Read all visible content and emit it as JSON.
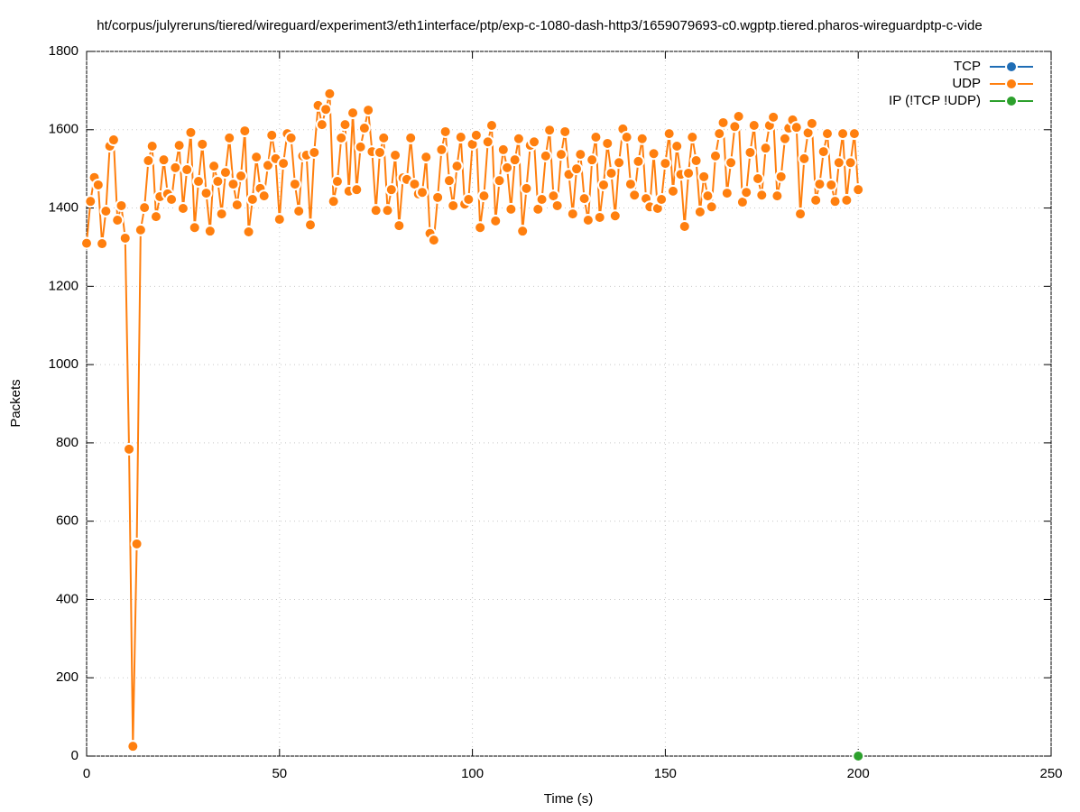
{
  "chart_data": {
    "type": "line",
    "title": "ht/corpus/julyreruns/tiered/wireguard/experiment3/eth1interface/ptp/exp-c-1080-dash-http3/1659079693-c0.wgptp.tiered.pharos-wireguardptp-c-vide",
    "x_label": "Time (s)",
    "y_label": "Packets",
    "xlim": [
      0,
      250
    ],
    "xticks": [
      0,
      50,
      100,
      150,
      200,
      250
    ],
    "ylim": [
      0,
      1800
    ],
    "yticks": [
      0,
      200,
      400,
      600,
      800,
      1000,
      1200,
      1400,
      1600,
      1800
    ],
    "grid": true,
    "legend": "top-right",
    "series": [
      {
        "name": "TCP",
        "color": "#1f6db5",
        "x": [],
        "values": []
      },
      {
        "name": "UDP",
        "color": "#ff7f0e",
        "x": [
          0,
          1,
          2,
          3,
          4,
          5,
          6,
          7,
          8,
          9,
          10,
          11,
          12,
          13,
          14,
          15,
          16,
          17,
          18,
          19,
          20,
          21,
          22,
          23,
          24,
          25,
          26,
          27,
          28,
          29,
          30,
          31,
          32,
          33,
          34,
          35,
          36,
          37,
          38,
          39,
          40,
          41,
          42,
          43,
          44,
          45,
          46,
          47,
          48,
          49,
          50,
          51,
          52,
          53,
          54,
          55,
          56,
          57,
          58,
          59,
          60,
          61,
          62,
          63,
          64,
          65,
          66,
          67,
          68,
          69,
          70,
          71,
          72,
          73,
          74,
          75,
          76,
          77,
          78,
          79,
          80,
          81,
          82,
          83,
          84,
          85,
          86,
          87,
          88,
          89,
          90,
          91,
          92,
          93,
          94,
          95,
          96,
          97,
          98,
          99,
          100,
          101,
          102,
          103,
          104,
          105,
          106,
          107,
          108,
          109,
          110,
          111,
          112,
          113,
          114,
          115,
          116,
          117,
          118,
          119,
          120,
          121,
          122,
          123,
          124,
          125,
          126,
          127,
          128,
          129,
          130,
          131,
          132,
          133,
          134,
          135,
          136,
          137,
          138,
          139,
          140,
          141,
          142,
          143,
          144,
          145,
          146,
          147,
          148,
          149,
          150,
          151,
          152,
          153,
          154,
          155,
          156,
          157,
          158,
          159,
          160,
          161,
          162,
          163,
          164,
          165,
          166,
          167,
          168,
          169,
          170,
          171,
          172,
          173,
          174,
          175,
          176,
          177,
          178,
          179,
          180,
          181,
          182,
          183,
          184,
          185,
          186,
          187,
          188,
          189,
          190,
          191,
          192,
          193,
          194,
          195,
          196,
          197,
          198,
          199,
          200
        ],
        "values": [
          1310,
          1417,
          1478,
          1459,
          1309,
          1392,
          1558,
          1574,
          1369,
          1406,
          1323,
          784,
          25,
          542,
          1344,
          1401,
          1521,
          1558,
          1378,
          1429,
          1523,
          1436,
          1422,
          1503,
          1560,
          1399,
          1498,
          1593,
          1350,
          1468,
          1563,
          1438,
          1341,
          1507,
          1468,
          1385,
          1491,
          1579,
          1461,
          1408,
          1482,
          1597,
          1339,
          1422,
          1530,
          1450,
          1431,
          1509,
          1586,
          1526,
          1371,
          1514,
          1590,
          1579,
          1461,
          1392,
          1533,
          1535,
          1357,
          1542,
          1662,
          1613,
          1652,
          1692,
          1417,
          1468,
          1579,
          1613,
          1443,
          1643,
          1447,
          1556,
          1604,
          1650,
          1544,
          1394,
          1542,
          1579,
          1394,
          1447,
          1535,
          1355,
          1477,
          1473,
          1579,
          1461,
          1436,
          1440,
          1530,
          1335,
          1318,
          1427,
          1549,
          1595,
          1470,
          1406,
          1507,
          1581,
          1410,
          1422,
          1563,
          1586,
          1350,
          1431,
          1569,
          1611,
          1367,
          1470,
          1549,
          1503,
          1397,
          1523,
          1577,
          1341,
          1450,
          1560,
          1569,
          1397,
          1422,
          1533,
          1599,
          1431,
          1406,
          1537,
          1595,
          1486,
          1385,
          1500,
          1537,
          1424,
          1369,
          1523,
          1581,
          1376,
          1459,
          1565,
          1489,
          1380,
          1516,
          1602,
          1581,
          1461,
          1433,
          1519,
          1577,
          1424,
          1403,
          1539,
          1399,
          1422,
          1514,
          1590,
          1443,
          1558,
          1486,
          1353,
          1489,
          1581,
          1521,
          1390,
          1480,
          1431,
          1403,
          1533,
          1590,
          1618,
          1438,
          1516,
          1608,
          1634,
          1415,
          1440,
          1542,
          1611,
          1475,
          1433,
          1553,
          1611,
          1632,
          1431,
          1480,
          1577,
          1604,
          1625,
          1606,
          1385,
          1526,
          1592,
          1616,
          1420,
          1461,
          1544,
          1590,
          1459,
          1417,
          1516,
          1590,
          1420,
          1516,
          1590,
          1447
        ]
      },
      {
        "name": "IP (!TCP  !UDP)",
        "color": "#2ca02c",
        "x": [
          200
        ],
        "values": [
          0
        ]
      }
    ]
  }
}
